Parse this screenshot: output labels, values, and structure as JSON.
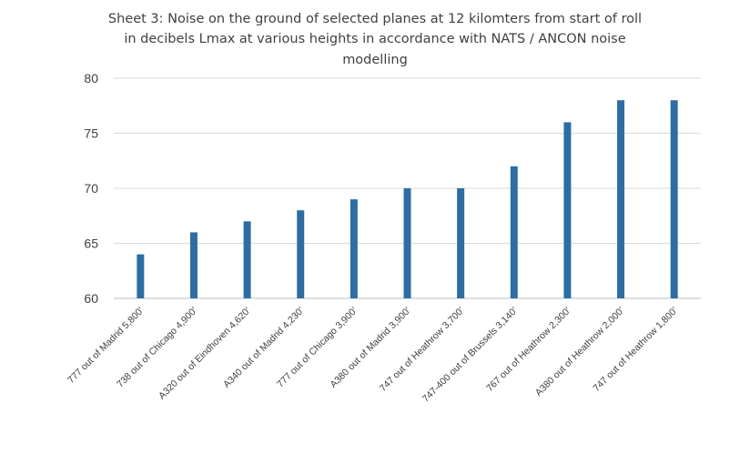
{
  "chart_data": {
    "type": "bar",
    "title_lines": [
      "Sheet 3:  Noise on the ground of selected  planes at 12 kilomters from start of roll",
      "in decibels Lmax at various heights in accordance with NATS / ANCON noise",
      "modelling"
    ],
    "categories": [
      "777 out of Madrid 5,800'",
      "738 out of Chicago 4,900'",
      "A320 out of Eindhoven 4,620'",
      "A340 out of Madrid 4,230'",
      "777 out of Chicago 3,900'",
      "A380 out of Madrid 3,900'",
      "747 out of Heathrow 3,700'",
      "747-400 out of Brussels 3,140'",
      "767 out of Heathrow 2,300'",
      "A380 out of Heathrow 2,000'",
      "747 out of Heathrow 1,800'"
    ],
    "values": [
      64,
      66,
      67,
      68,
      69,
      70,
      70,
      72,
      76,
      78,
      78
    ],
    "ylim": [
      60,
      80
    ],
    "yticks": [
      60,
      65,
      70,
      75,
      80
    ],
    "grid": true,
    "bar_color": "#2e6da4"
  }
}
